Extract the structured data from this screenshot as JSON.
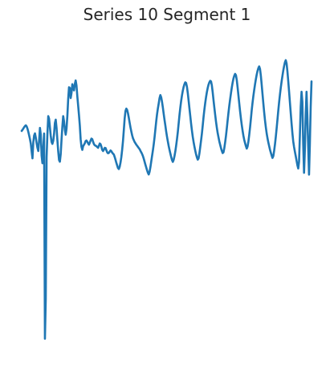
{
  "chart_data": {
    "type": "line",
    "title": "Series 10 Segment 1",
    "xlabel": "",
    "ylabel": "",
    "axes_visible": false,
    "grid": false,
    "series_color": "#1f77b4",
    "series": [
      {
        "values": [
          0.152,
          0.158,
          0.165,
          0.172,
          0.178,
          0.182,
          0.176,
          0.164,
          0.147,
          0.128,
          0.108,
          0.084,
          0.043,
          0.006,
          0.092,
          0.128,
          0.139,
          0.117,
          0.087,
          0.062,
          0.045,
          0.101,
          0.168,
          0.132,
          0.021,
          -0.02,
          0.061,
          0.138,
          -0.955,
          -0.742,
          0.012,
          0.137,
          0.231,
          0.217,
          0.172,
          0.126,
          0.093,
          0.083,
          0.099,
          0.136,
          0.194,
          0.212,
          0.168,
          0.103,
          0.043,
          -0.003,
          -0.012,
          0.029,
          0.106,
          0.175,
          0.231,
          0.203,
          0.158,
          0.132,
          0.164,
          0.232,
          0.322,
          0.385,
          0.381,
          0.327,
          0.354,
          0.401,
          0.381,
          0.368,
          0.402,
          0.421,
          0.394,
          0.337,
          0.287,
          0.237,
          0.181,
          0.108,
          0.067,
          0.051,
          0.071,
          0.078,
          0.086,
          0.098,
          0.101,
          0.095,
          0.086,
          0.079,
          0.089,
          0.101,
          0.111,
          0.108,
          0.094,
          0.082,
          0.076,
          0.073,
          0.071,
          0.066,
          0.062,
          0.073,
          0.085,
          0.081,
          0.068,
          0.051,
          0.045,
          0.052,
          0.062,
          0.061,
          0.049,
          0.038,
          0.033,
          0.035,
          0.042,
          0.048,
          0.044,
          0.036,
          0.031,
          0.026,
          0.013,
          -0.002,
          -0.018,
          -0.032,
          -0.046,
          -0.051,
          -0.039,
          -0.017,
          0.013,
          0.052,
          0.098,
          0.157,
          0.218,
          0.258,
          0.271,
          0.264,
          0.246,
          0.222,
          0.196,
          0.171,
          0.149,
          0.129,
          0.113,
          0.103,
          0.093,
          0.086,
          0.079,
          0.073,
          0.067,
          0.061,
          0.055,
          0.046,
          0.038,
          0.029,
          0.018,
          0.004,
          -0.012,
          -0.028,
          -0.043,
          -0.058,
          -0.071,
          -0.08,
          -0.066,
          -0.041,
          -0.011,
          0.019,
          0.048,
          0.081,
          0.118,
          0.161,
          0.203,
          0.241,
          0.272,
          0.298,
          0.327,
          0.343,
          0.331,
          0.307,
          0.277,
          0.243,
          0.211,
          0.181,
          0.149,
          0.121,
          0.096,
          0.072,
          0.051,
          0.032,
          0.014,
          -0.003,
          -0.013,
          -0.002,
          0.018,
          0.043,
          0.074,
          0.108,
          0.146,
          0.191,
          0.236,
          0.276,
          0.311,
          0.341,
          0.366,
          0.386,
          0.401,
          0.411,
          0.407,
          0.387,
          0.354,
          0.314,
          0.272,
          0.232,
          0.191,
          0.154,
          0.121,
          0.093,
          0.069,
          0.047,
          0.027,
          0.011,
          -0.001,
          0.006,
          0.032,
          0.066,
          0.101,
          0.138,
          0.181,
          0.226,
          0.266,
          0.301,
          0.332,
          0.359,
          0.381,
          0.399,
          0.411,
          0.419,
          0.416,
          0.394,
          0.358,
          0.316,
          0.276,
          0.238,
          0.201,
          0.169,
          0.141,
          0.118,
          0.096,
          0.078,
          0.061,
          0.046,
          0.034,
          0.038,
          0.061,
          0.091,
          0.126,
          0.166,
          0.209,
          0.249,
          0.287,
          0.321,
          0.353,
          0.383,
          0.409,
          0.431,
          0.446,
          0.456,
          0.449,
          0.423,
          0.384,
          0.341,
          0.298,
          0.256,
          0.218,
          0.184,
          0.153,
          0.126,
          0.104,
          0.087,
          0.071,
          0.058,
          0.069,
          0.096,
          0.131,
          0.171,
          0.216,
          0.263,
          0.303,
          0.339,
          0.371,
          0.401,
          0.428,
          0.452,
          0.472,
          0.487,
          0.496,
          0.482,
          0.446,
          0.398,
          0.348,
          0.298,
          0.251,
          0.208,
          0.171,
          0.139,
          0.113,
          0.091,
          0.071,
          0.052,
          0.036,
          0.021,
          0.008,
          0.018,
          0.046,
          0.081,
          0.121,
          0.166,
          0.213,
          0.261,
          0.306,
          0.346,
          0.383,
          0.416,
          0.446,
          0.474,
          0.498,
          0.518,
          0.529,
          0.511,
          0.468,
          0.416,
          0.361,
          0.303,
          0.246,
          0.191,
          0.139,
          0.096,
          0.066,
          0.041,
          0.018,
          -0.006,
          -0.031,
          -0.048,
          -0.011,
          0.131,
          0.281,
          0.361,
          0.306,
          0.081,
          -0.071,
          0.051,
          0.241,
          0.361,
          0.231,
          0.071,
          -0.081,
          0.081,
          0.281,
          0.416
        ]
      }
    ],
    "xlim": [
      0,
      349
    ],
    "ylim": [
      -1.0,
      0.55
    ]
  }
}
